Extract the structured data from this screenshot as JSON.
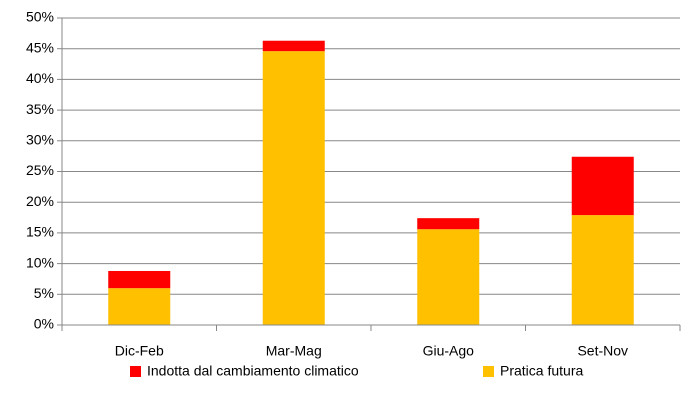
{
  "chart_data": {
    "type": "stacked_bar",
    "categories": [
      "Dic-Feb",
      "Mar-Mag",
      "Giu-Ago",
      "Set-Nov"
    ],
    "series": [
      {
        "name": "Indotta dal cambiamento climatico",
        "color": "#ff0000",
        "values": [
          2.8,
          1.7,
          1.8,
          9.5
        ]
      },
      {
        "name": "Pratica futura",
        "color": "#ffc000",
        "values": [
          6,
          44.6,
          15.6,
          17.9
        ]
      }
    ],
    "ylim": [
      0,
      50
    ],
    "yticks": [
      {
        "value": 0,
        "label": "0%"
      },
      {
        "value": 5,
        "label": "5%"
      },
      {
        "value": 10,
        "label": "10%"
      },
      {
        "value": 15,
        "label": "15%"
      },
      {
        "value": 20,
        "label": "20%"
      },
      {
        "value": 25,
        "label": "25%"
      },
      {
        "value": 30,
        "label": "30%"
      },
      {
        "value": 35,
        "label": "35%"
      },
      {
        "value": 40,
        "label": "40%"
      },
      {
        "value": 45,
        "label": "45%"
      },
      {
        "value": 50,
        "label": "50%"
      }
    ],
    "grid": true,
    "legend": "bottom"
  }
}
